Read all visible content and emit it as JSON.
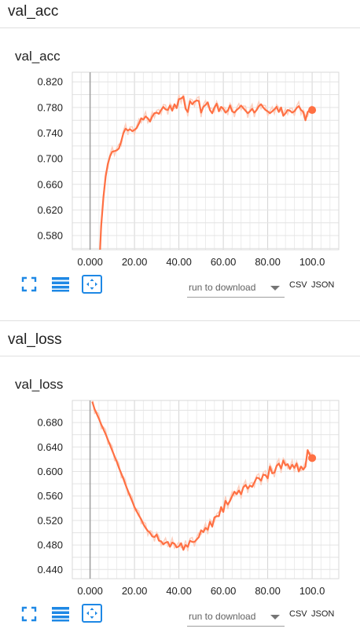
{
  "sections": [
    {
      "title": "val_acc"
    },
    {
      "title": "val_loss"
    }
  ],
  "charts": [
    {
      "card_title": "val_acc",
      "chart_data": {
        "type": "line",
        "title": "val_acc",
        "xlim": [
          -8,
          112
        ],
        "ylim": [
          0.558,
          0.835
        ],
        "x_ticks": [
          "0.000",
          "20.00",
          "40.00",
          "60.00",
          "80.00",
          "100.0"
        ],
        "y_ticks": [
          "0.580",
          "0.620",
          "0.660",
          "0.700",
          "0.740",
          "0.780",
          "0.820"
        ],
        "grid": true,
        "series": [
          {
            "color": "#ff7043",
            "x": [
              4.5,
              5,
              6,
              7,
              8,
              9,
              10,
              11,
              12,
              13,
              14,
              15,
              16,
              17,
              18,
              19,
              20,
              21,
              22,
              23,
              24,
              25,
              26,
              27,
              28,
              29,
              30,
              31,
              32,
              33,
              34,
              35,
              36,
              37,
              38,
              39,
              40,
              41,
              42,
              43,
              44,
              45,
              46,
              47,
              48,
              49,
              50,
              51,
              52,
              53,
              54,
              55,
              56,
              57,
              58,
              59,
              60,
              61,
              62,
              63,
              64,
              65,
              66,
              67,
              68,
              69,
              70,
              71,
              72,
              73,
              74,
              75,
              76,
              77,
              78,
              79,
              80,
              81,
              82,
              83,
              84,
              85,
              86,
              87,
              88,
              89,
              90,
              91,
              92,
              93,
              94,
              95,
              96,
              97,
              98,
              99,
              100
            ],
            "y": [
              0.558,
              0.595,
              0.64,
              0.672,
              0.692,
              0.704,
              0.711,
              0.712,
              0.713,
              0.716,
              0.727,
              0.74,
              0.747,
              0.744,
              0.746,
              0.743,
              0.745,
              0.748,
              0.755,
              0.763,
              0.761,
              0.766,
              0.763,
              0.758,
              0.766,
              0.771,
              0.772,
              0.77,
              0.776,
              0.781,
              0.777,
              0.776,
              0.783,
              0.775,
              0.785,
              0.779,
              0.793,
              0.794,
              0.797,
              0.778,
              0.773,
              0.79,
              0.785,
              0.789,
              0.791,
              0.79,
              0.772,
              0.781,
              0.784,
              0.788,
              0.776,
              0.771,
              0.78,
              0.786,
              0.774,
              0.781,
              0.778,
              0.772,
              0.775,
              0.783,
              0.774,
              0.772,
              0.776,
              0.779,
              0.783,
              0.779,
              0.775,
              0.771,
              0.774,
              0.778,
              0.772,
              0.776,
              0.782,
              0.785,
              0.78,
              0.776,
              0.774,
              0.771,
              0.774,
              0.777,
              0.781,
              0.773,
              0.78,
              0.767,
              0.771,
              0.776,
              0.775,
              0.772,
              0.774,
              0.779,
              0.782,
              0.776,
              0.773,
              0.76,
              0.773,
              0.776,
              0.776
            ]
          }
        ]
      }
    },
    {
      "card_title": "val_loss",
      "chart_data": {
        "type": "line",
        "title": "val_loss",
        "xlim": [
          -8,
          112
        ],
        "ylim": [
          0.425,
          0.716
        ],
        "x_ticks": [
          "0.000",
          "20.00",
          "40.00",
          "60.00",
          "80.00",
          "100.0"
        ],
        "y_ticks": [
          "0.440",
          "0.480",
          "0.520",
          "0.560",
          "0.600",
          "0.640",
          "0.680"
        ],
        "grid": true,
        "series": [
          {
            "color": "#ff7043",
            "x": [
              1,
              2,
              3,
              4,
              5,
              6,
              7,
              8,
              9,
              10,
              11,
              12,
              13,
              14,
              15,
              16,
              17,
              18,
              19,
              20,
              21,
              22,
              23,
              24,
              25,
              26,
              27,
              28,
              29,
              30,
              31,
              32,
              33,
              34,
              35,
              36,
              37,
              38,
              39,
              40,
              41,
              42,
              43,
              44,
              45,
              46,
              47,
              48,
              49,
              50,
              51,
              52,
              53,
              54,
              55,
              56,
              57,
              58,
              59,
              60,
              61,
              62,
              63,
              64,
              65,
              66,
              67,
              68,
              69,
              70,
              71,
              72,
              73,
              74,
              75,
              76,
              77,
              78,
              79,
              80,
              81,
              82,
              83,
              84,
              85,
              86,
              87,
              88,
              89,
              90,
              91,
              92,
              93,
              94,
              95,
              96,
              97,
              98,
              99,
              100
            ],
            "y": [
              0.714,
              0.702,
              0.694,
              0.686,
              0.677,
              0.669,
              0.661,
              0.652,
              0.643,
              0.634,
              0.625,
              0.616,
              0.606,
              0.597,
              0.588,
              0.578,
              0.569,
              0.56,
              0.551,
              0.542,
              0.535,
              0.528,
              0.522,
              0.514,
              0.508,
              0.503,
              0.5,
              0.494,
              0.493,
              0.497,
              0.487,
              0.486,
              0.481,
              0.484,
              0.485,
              0.477,
              0.484,
              0.482,
              0.476,
              0.478,
              0.483,
              0.472,
              0.48,
              0.477,
              0.487,
              0.485,
              0.485,
              0.489,
              0.493,
              0.504,
              0.501,
              0.508,
              0.505,
              0.518,
              0.51,
              0.525,
              0.527,
              0.527,
              0.542,
              0.534,
              0.552,
              0.546,
              0.552,
              0.56,
              0.567,
              0.563,
              0.569,
              0.563,
              0.574,
              0.578,
              0.572,
              0.577,
              0.575,
              0.582,
              0.59,
              0.589,
              0.585,
              0.595,
              0.594,
              0.589,
              0.608,
              0.597,
              0.598,
              0.609,
              0.613,
              0.605,
              0.618,
              0.61,
              0.612,
              0.604,
              0.611,
              0.606,
              0.613,
              0.6,
              0.608,
              0.603,
              0.608,
              0.635,
              0.627,
              0.622
            ]
          }
        ]
      }
    }
  ],
  "toolbar": {
    "expand_icon": "fullscreen-icon",
    "data_icon": "list-icon",
    "fit_icon": "fit-domain-icon",
    "run_select": "run to download",
    "csv": "CSV",
    "json": "JSON"
  },
  "colors": {
    "line": "#ff7043",
    "raw_line": "#fbd0c0",
    "accent": "#1e88e5"
  }
}
